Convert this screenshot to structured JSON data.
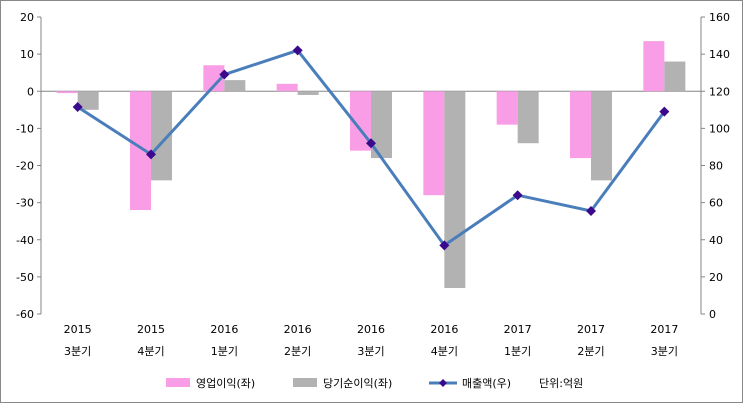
{
  "chart_data": {
    "type": "bar",
    "categories": [
      [
        "2015",
        "3분기"
      ],
      [
        "2015",
        "4분기"
      ],
      [
        "2016",
        "1분기"
      ],
      [
        "2016",
        "2분기"
      ],
      [
        "2016",
        "3분기"
      ],
      [
        "2016",
        "4분기"
      ],
      [
        "2017",
        "1분기"
      ],
      [
        "2017",
        "2분기"
      ],
      [
        "2017",
        "3분기"
      ]
    ],
    "series": [
      {
        "name": "영업이익(좌)",
        "type": "bar",
        "axis": "left",
        "color": "#f99ee6",
        "values": [
          -0.5,
          -32,
          7,
          2,
          -16,
          -28,
          -9,
          -18,
          13.5
        ]
      },
      {
        "name": "당기순이익(좌)",
        "type": "bar",
        "axis": "left",
        "color": "#b2b2b2",
        "values": [
          -5,
          -24,
          3,
          -1,
          -18,
          -53,
          -14,
          -24,
          8
        ]
      },
      {
        "name": "매출액(우)",
        "type": "line",
        "axis": "right",
        "color": "#4a7ebb",
        "marker_color": "#3b0a8c",
        "values": [
          111.5,
          86,
          129,
          142,
          92,
          37,
          64,
          55.5,
          109
        ]
      }
    ],
    "ylim_left": [
      -60,
      20
    ],
    "yticks_left": [
      20,
      10,
      0,
      -10,
      -20,
      -30,
      -40,
      -50,
      -60
    ],
    "ylim_right": [
      0,
      160
    ],
    "yticks_right": [
      160,
      140,
      120,
      100,
      80,
      60,
      40,
      20,
      0
    ],
    "unit_note": "단위:억원",
    "legend": "bottom",
    "grid": false
  }
}
